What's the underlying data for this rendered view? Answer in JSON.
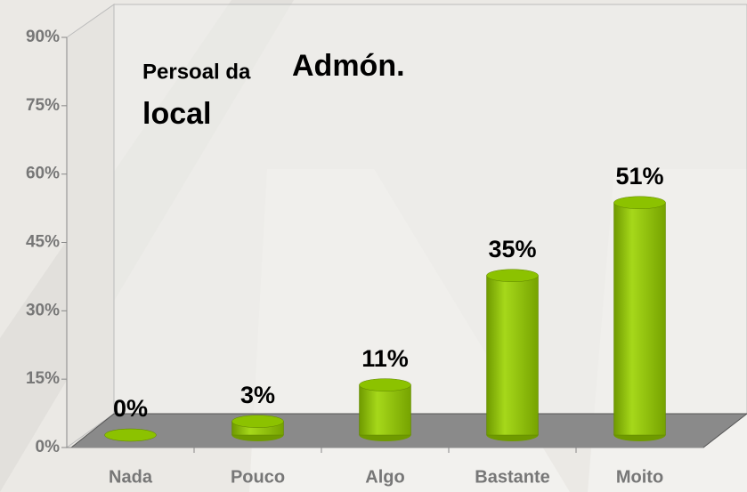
{
  "chart_data": {
    "type": "bar",
    "title": [
      "Persoal da",
      "Admón.",
      "local"
    ],
    "categories": [
      "Nada",
      "Pouco",
      "Algo",
      "Bastante",
      "Moito"
    ],
    "values": [
      0,
      3,
      11,
      35,
      51
    ],
    "value_labels": [
      "0%",
      "3%",
      "11%",
      "35%",
      "51%"
    ],
    "color": "#8cc200",
    "ylim": [
      0,
      90
    ],
    "yticks": [
      {
        "value": 0,
        "label": "0%"
      },
      {
        "value": 15,
        "label": "15%"
      },
      {
        "value": 30,
        "label": "30%"
      },
      {
        "value": 45,
        "label": "45%"
      },
      {
        "value": 60,
        "label": "60%"
      },
      {
        "value": 75,
        "label": "75%"
      },
      {
        "value": 90,
        "label": "90%"
      }
    ],
    "grid": false
  }
}
